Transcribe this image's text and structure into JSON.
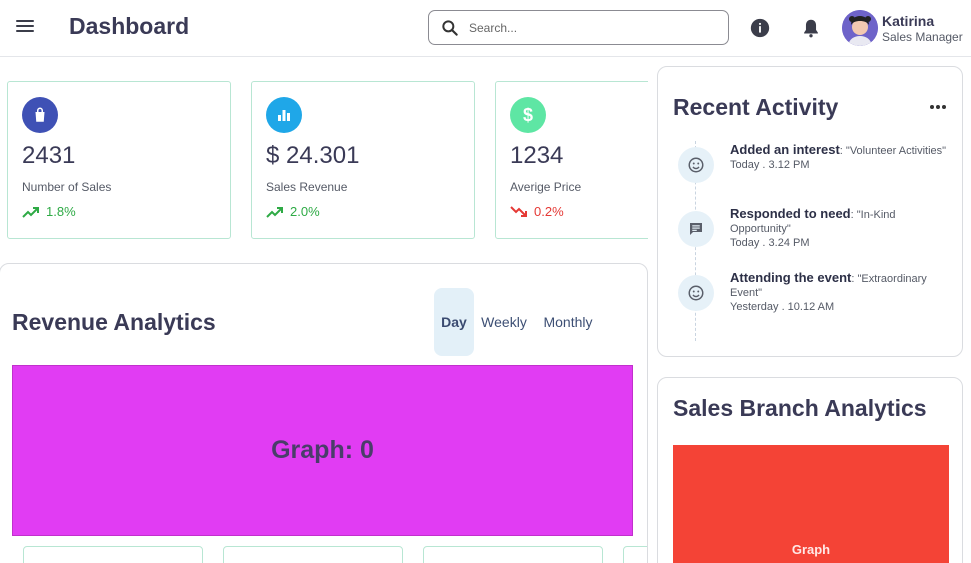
{
  "header": {
    "title": "Dashboard",
    "search_placeholder": "Search...",
    "user": {
      "name": "Katirina",
      "role": "Sales Manager"
    }
  },
  "stats": [
    {
      "value": "2431",
      "label": "Number of Sales",
      "trend": "1.8%",
      "direction": "up",
      "icon": "shopping-bag-icon",
      "icon_color": "#3f51b5"
    },
    {
      "value": "$ 24.301",
      "label": "Sales Revenue",
      "trend": "2.0%",
      "direction": "up",
      "icon": "bar-chart-icon",
      "icon_color": "#1fa7e8"
    },
    {
      "value": "1234",
      "label": "Averige Price",
      "trend": "0.2%",
      "direction": "down",
      "icon": "dollar-icon",
      "icon_color": "#5ee6a4"
    }
  ],
  "revenue": {
    "title": "Revenue Analytics",
    "tabs": [
      "Day",
      "Weekly",
      "Monthly"
    ],
    "active_tab": "Day",
    "graph_label": "Graph: 0"
  },
  "activity": {
    "title": "Recent Activity",
    "items": [
      {
        "action": "Added an interest",
        "subject": "\"Volunteer Activities\"",
        "time": "Today . 3.12 PM",
        "icon": "smiley-icon"
      },
      {
        "action": "Responded to need",
        "subject": "\"In-Kind Opportunity\"",
        "time": "Today . 3.24 PM",
        "icon": "chat-icon"
      },
      {
        "action": "Attending the event",
        "subject": "\"Extraordinary Event\"",
        "time": "Yesterday . 10.12 AM",
        "icon": "smiley-icon"
      }
    ]
  },
  "branch": {
    "title": "Sales Branch Analytics",
    "graph_label": "Graph"
  },
  "colors": {
    "up": "#2eaa45",
    "down": "#e53935",
    "revenue_graph": "#e13cf3",
    "branch_graph": "#f44336"
  }
}
